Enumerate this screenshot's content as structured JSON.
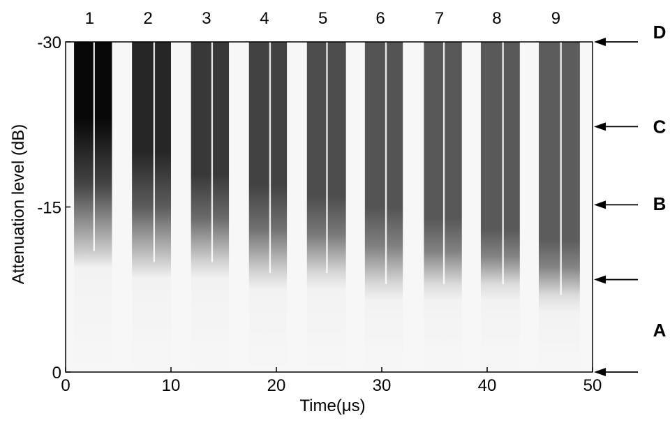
{
  "chart_data": {
    "type": "heatmap",
    "xlabel": "Time(μs)",
    "ylabel": "Attenuation level (dB)",
    "xlim": [
      0,
      50
    ],
    "ylim": [
      0,
      -30
    ],
    "x_ticks": [
      "0",
      "10",
      "20",
      "30",
      "40",
      "50"
    ],
    "y_ticks": [
      "0",
      "-15",
      "-30"
    ],
    "colormap": "grayscale (darker = higher intensity)",
    "pulses": [
      {
        "label": "1",
        "x_start": 0.8,
        "x_end": 4.4,
        "x_gap": 2.7,
        "fade_level": -11,
        "peak_level": -23,
        "max_darkness": 0.97
      },
      {
        "label": "2",
        "x_start": 6.3,
        "x_end": 10.0,
        "x_gap": 8.4,
        "fade_level": -10,
        "peak_level": -20,
        "max_darkness": 0.85
      },
      {
        "label": "3",
        "x_start": 11.9,
        "x_end": 15.5,
        "x_gap": 13.9,
        "fade_level": -10,
        "peak_level": -18,
        "max_darkness": 0.78
      },
      {
        "label": "4",
        "x_start": 17.4,
        "x_end": 21.0,
        "x_gap": 19.4,
        "fade_level": -9,
        "peak_level": -17,
        "max_darkness": 0.74
      },
      {
        "label": "5",
        "x_start": 22.9,
        "x_end": 26.6,
        "x_gap": 24.8,
        "fade_level": -9,
        "peak_level": -16,
        "max_darkness": 0.7
      },
      {
        "label": "6",
        "x_start": 28.4,
        "x_end": 32.0,
        "x_gap": 30.4,
        "fade_level": -8,
        "peak_level": -15,
        "max_darkness": 0.67
      },
      {
        "label": "7",
        "x_start": 34.0,
        "x_end": 37.6,
        "x_gap": 35.9,
        "fade_level": -8,
        "peak_level": -14,
        "max_darkness": 0.66
      },
      {
        "label": "8",
        "x_start": 39.4,
        "x_end": 43.1,
        "x_gap": 41.5,
        "fade_level": -8,
        "peak_level": -13,
        "max_darkness": 0.65
      },
      {
        "label": "9",
        "x_start": 44.9,
        "x_end": 48.8,
        "x_gap": 47.0,
        "fade_level": -7,
        "peak_level": -12,
        "max_darkness": 0.64
      }
    ],
    "region_labels": [
      {
        "letter": "D",
        "level": -30.9
      },
      {
        "letter": "C",
        "level": -22.3
      },
      {
        "letter": "B",
        "level": -15.3
      },
      {
        "letter": "A",
        "level": -3.8
      }
    ],
    "arrows": [
      -30,
      -22.3,
      -15.2,
      -8.4,
      0
    ]
  }
}
